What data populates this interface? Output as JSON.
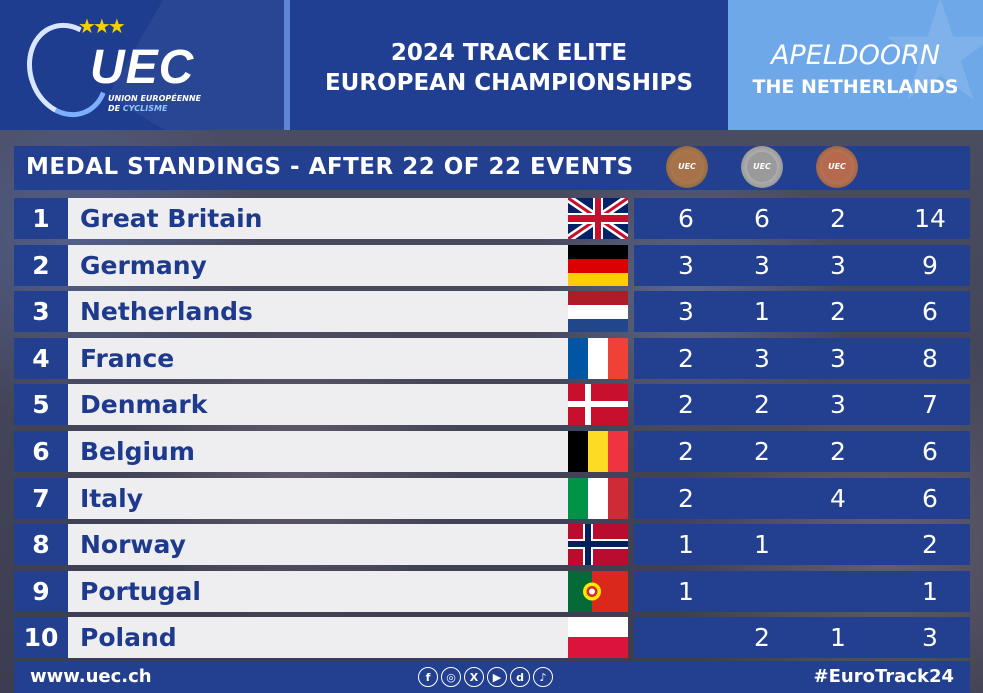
{
  "header": {
    "logo": {
      "text": "UEC",
      "line1": "UNION EUROPÉENNE",
      "line2a": "DE ",
      "line2b": "CYCLISME"
    },
    "title_line1": "2024 TRACK ELITE",
    "title_line2": "EUROPEAN CHAMPIONSHIPS",
    "location_city": "APELDOORN",
    "location_country": "THE NETHERLANDS"
  },
  "standings": {
    "subtitle": "MEDAL STANDINGS - AFTER 22 OF 22 EVENTS",
    "medal_icon_text": "UEC",
    "rows": [
      {
        "rank": "1",
        "country": "Great Britain",
        "gold": "6",
        "silver": "6",
        "bronze": "2",
        "total": "14"
      },
      {
        "rank": "2",
        "country": "Germany",
        "gold": "3",
        "silver": "3",
        "bronze": "3",
        "total": "9"
      },
      {
        "rank": "3",
        "country": "Netherlands",
        "gold": "3",
        "silver": "1",
        "bronze": "2",
        "total": "6"
      },
      {
        "rank": "4",
        "country": "France",
        "gold": "2",
        "silver": "3",
        "bronze": "3",
        "total": "8"
      },
      {
        "rank": "5",
        "country": "Denmark",
        "gold": "2",
        "silver": "2",
        "bronze": "3",
        "total": "7"
      },
      {
        "rank": "6",
        "country": "Belgium",
        "gold": "2",
        "silver": "2",
        "bronze": "2",
        "total": "6"
      },
      {
        "rank": "7",
        "country": "Italy",
        "gold": "2",
        "silver": "",
        "bronze": "4",
        "total": "6"
      },
      {
        "rank": "8",
        "country": "Norway",
        "gold": "1",
        "silver": "1",
        "bronze": "",
        "total": "2"
      },
      {
        "rank": "9",
        "country": "Portugal",
        "gold": "1",
        "silver": "",
        "bronze": "",
        "total": "1"
      },
      {
        "rank": "10",
        "country": "Poland",
        "gold": "",
        "silver": "2",
        "bronze": "1",
        "total": "3"
      }
    ]
  },
  "footer": {
    "url": "www.uec.ch",
    "hashtag": "#EuroTrack24",
    "socials": [
      "facebook-icon",
      "instagram-icon",
      "x-icon",
      "youtube-icon",
      "dailymotion-icon",
      "tiktok-icon"
    ]
  },
  "colors": {
    "navy": "#223f90",
    "light_blue": "#6ea8e8",
    "row_bg": "#eeeef0",
    "country_text": "#1e3a8c"
  }
}
